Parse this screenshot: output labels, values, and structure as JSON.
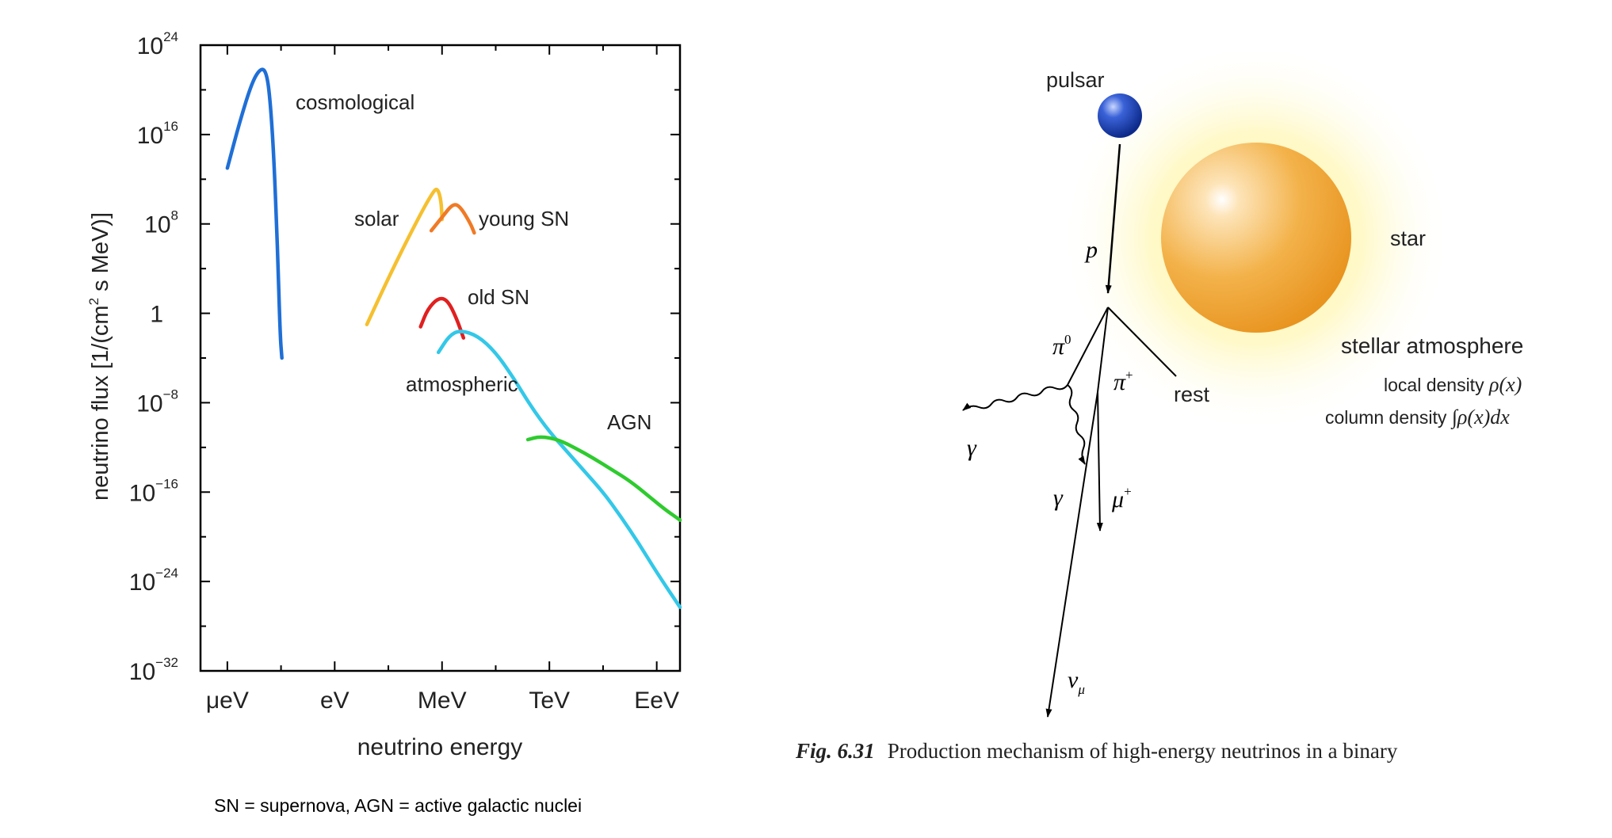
{
  "chart_data": {
    "type": "line",
    "title": "",
    "xlabel": "neutrino energy",
    "ylabel": "neutrino flux [1/(cm² s MeV)]",
    "x_tick_labels": [
      "μeV",
      "eV",
      "MeV",
      "TeV",
      "EeV"
    ],
    "y_tick_labels": [
      {
        "base": "10",
        "exp": "24"
      },
      {
        "base": "10",
        "exp": "16"
      },
      {
        "base": "10",
        "exp": "8"
      },
      {
        "base": "1",
        "exp": ""
      },
      {
        "base": "10",
        "exp": "−8"
      },
      {
        "base": "10",
        "exp": "−16"
      },
      {
        "base": "10",
        "exp": "−24"
      },
      {
        "base": "10",
        "exp": "−32"
      }
    ],
    "x_scale": "log10 energy in eV",
    "xlim": [
      -7.5,
      19.3
    ],
    "ylim_log10": [
      -32,
      24
    ],
    "grid": false,
    "series": [
      {
        "name": "cosmological",
        "color": "#1f6fd6",
        "points": [
          [
            -6,
            13
          ],
          [
            -5.3,
            17.2
          ],
          [
            -4.6,
            20.8
          ],
          [
            -4.1,
            22
          ],
          [
            -3.8,
            21.5
          ],
          [
            -3.6,
            19
          ],
          [
            -3.4,
            14
          ],
          [
            -3.2,
            6
          ],
          [
            -3.05,
            -2
          ],
          [
            -2.95,
            -4
          ]
        ]
      },
      {
        "name": "solar",
        "color": "#f5c030",
        "points": [
          [
            1.8,
            -1
          ],
          [
            3.1,
            3.5
          ],
          [
            4.6,
            8.3
          ],
          [
            5.5,
            10.9
          ],
          [
            5.75,
            11.2
          ],
          [
            5.95,
            10.1
          ],
          [
            6.0,
            8.4
          ]
        ]
      },
      {
        "name": "young SN",
        "color": "#f07a25",
        "points": [
          [
            5.4,
            7.4
          ],
          [
            6,
            8.6
          ],
          [
            6.6,
            9.8
          ],
          [
            7,
            9.6
          ],
          [
            7.6,
            8
          ],
          [
            7.8,
            7.2
          ]
        ]
      },
      {
        "name": "old SN",
        "color": "#e02020",
        "points": [
          [
            4.8,
            -1.2
          ],
          [
            5.2,
            0.4
          ],
          [
            5.8,
            1.4
          ],
          [
            6.3,
            1.2
          ],
          [
            6.8,
            -0.4
          ],
          [
            7.2,
            -2.2
          ]
        ]
      },
      {
        "name": "atmospheric",
        "color": "#33c8e8",
        "points": [
          [
            5.8,
            -3.5
          ],
          [
            6.4,
            -2
          ],
          [
            7,
            -1.5
          ],
          [
            8,
            -2
          ],
          [
            9,
            -3.5
          ],
          [
            10,
            -5.8
          ],
          [
            11,
            -8.4
          ],
          [
            12,
            -10.6
          ],
          [
            13,
            -12.4
          ],
          [
            14,
            -14.2
          ],
          [
            15,
            -16
          ],
          [
            16,
            -18.2
          ],
          [
            17,
            -20.6
          ],
          [
            18,
            -23.2
          ],
          [
            19.3,
            -26.3
          ]
        ]
      },
      {
        "name": "AGN",
        "color": "#2ecb2e",
        "points": [
          [
            10.8,
            -11.3
          ],
          [
            11.5,
            -11
          ],
          [
            12.5,
            -11.3
          ],
          [
            13.5,
            -12.1
          ],
          [
            14.5,
            -13
          ],
          [
            15.5,
            -14
          ],
          [
            16.5,
            -15
          ],
          [
            17.5,
            -16.3
          ],
          [
            18.5,
            -17.6
          ],
          [
            19.3,
            -18.5
          ]
        ]
      }
    ]
  },
  "footnote": "SN = supernova, AGN = active galactic nuclei",
  "diagram": {
    "labels": {
      "pulsar": "pulsar",
      "star": "star",
      "p": "p",
      "rest": "rest",
      "stellar_atmosphere": "stellar atmosphere",
      "local_density_text": "local density ",
      "local_density_math": "ρ(x)",
      "column_density_text": "column density ",
      "column_density_math": "∫ρ(x)dx",
      "pi0": "π",
      "pi0_sup": "0",
      "piplus": "π",
      "piplus_sup": "+",
      "gamma": "γ",
      "muplus": "μ",
      "muplus_sup": "+",
      "nu": "ν",
      "nu_sub": "μ"
    },
    "colors": {
      "star": "#f0a830",
      "glow": "#fff5a0",
      "pulsar": "#1a3fa8"
    }
  },
  "caption": {
    "label": "Fig. 6.31",
    "text": "Production mechanism of high-energy neutrinos in a binary"
  }
}
